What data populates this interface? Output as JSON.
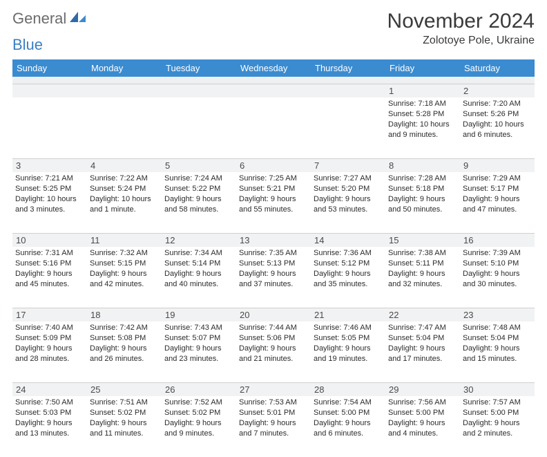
{
  "brand": {
    "part1": "General",
    "part2": "Blue"
  },
  "title": "November 2024",
  "location": "Zolotoye Pole, Ukraine",
  "colors": {
    "header_bar": "#3b8bd0",
    "daynum_bg": "#f1f2f3",
    "border": "#cfcfcf",
    "text": "#2b2b2b",
    "brand_gray": "#6b6b6b",
    "brand_blue": "#3b7fc4"
  },
  "days_of_week": [
    "Sunday",
    "Monday",
    "Tuesday",
    "Wednesday",
    "Thursday",
    "Friday",
    "Saturday"
  ],
  "weeks": [
    [
      null,
      null,
      null,
      null,
      null,
      {
        "n": "1",
        "sr": "Sunrise: 7:18 AM",
        "ss": "Sunset: 5:28 PM",
        "d1": "Daylight: 10 hours",
        "d2": "and 9 minutes."
      },
      {
        "n": "2",
        "sr": "Sunrise: 7:20 AM",
        "ss": "Sunset: 5:26 PM",
        "d1": "Daylight: 10 hours",
        "d2": "and 6 minutes."
      }
    ],
    [
      {
        "n": "3",
        "sr": "Sunrise: 7:21 AM",
        "ss": "Sunset: 5:25 PM",
        "d1": "Daylight: 10 hours",
        "d2": "and 3 minutes."
      },
      {
        "n": "4",
        "sr": "Sunrise: 7:22 AM",
        "ss": "Sunset: 5:24 PM",
        "d1": "Daylight: 10 hours",
        "d2": "and 1 minute."
      },
      {
        "n": "5",
        "sr": "Sunrise: 7:24 AM",
        "ss": "Sunset: 5:22 PM",
        "d1": "Daylight: 9 hours",
        "d2": "and 58 minutes."
      },
      {
        "n": "6",
        "sr": "Sunrise: 7:25 AM",
        "ss": "Sunset: 5:21 PM",
        "d1": "Daylight: 9 hours",
        "d2": "and 55 minutes."
      },
      {
        "n": "7",
        "sr": "Sunrise: 7:27 AM",
        "ss": "Sunset: 5:20 PM",
        "d1": "Daylight: 9 hours",
        "d2": "and 53 minutes."
      },
      {
        "n": "8",
        "sr": "Sunrise: 7:28 AM",
        "ss": "Sunset: 5:18 PM",
        "d1": "Daylight: 9 hours",
        "d2": "and 50 minutes."
      },
      {
        "n": "9",
        "sr": "Sunrise: 7:29 AM",
        "ss": "Sunset: 5:17 PM",
        "d1": "Daylight: 9 hours",
        "d2": "and 47 minutes."
      }
    ],
    [
      {
        "n": "10",
        "sr": "Sunrise: 7:31 AM",
        "ss": "Sunset: 5:16 PM",
        "d1": "Daylight: 9 hours",
        "d2": "and 45 minutes."
      },
      {
        "n": "11",
        "sr": "Sunrise: 7:32 AM",
        "ss": "Sunset: 5:15 PM",
        "d1": "Daylight: 9 hours",
        "d2": "and 42 minutes."
      },
      {
        "n": "12",
        "sr": "Sunrise: 7:34 AM",
        "ss": "Sunset: 5:14 PM",
        "d1": "Daylight: 9 hours",
        "d2": "and 40 minutes."
      },
      {
        "n": "13",
        "sr": "Sunrise: 7:35 AM",
        "ss": "Sunset: 5:13 PM",
        "d1": "Daylight: 9 hours",
        "d2": "and 37 minutes."
      },
      {
        "n": "14",
        "sr": "Sunrise: 7:36 AM",
        "ss": "Sunset: 5:12 PM",
        "d1": "Daylight: 9 hours",
        "d2": "and 35 minutes."
      },
      {
        "n": "15",
        "sr": "Sunrise: 7:38 AM",
        "ss": "Sunset: 5:11 PM",
        "d1": "Daylight: 9 hours",
        "d2": "and 32 minutes."
      },
      {
        "n": "16",
        "sr": "Sunrise: 7:39 AM",
        "ss": "Sunset: 5:10 PM",
        "d1": "Daylight: 9 hours",
        "d2": "and 30 minutes."
      }
    ],
    [
      {
        "n": "17",
        "sr": "Sunrise: 7:40 AM",
        "ss": "Sunset: 5:09 PM",
        "d1": "Daylight: 9 hours",
        "d2": "and 28 minutes."
      },
      {
        "n": "18",
        "sr": "Sunrise: 7:42 AM",
        "ss": "Sunset: 5:08 PM",
        "d1": "Daylight: 9 hours",
        "d2": "and 26 minutes."
      },
      {
        "n": "19",
        "sr": "Sunrise: 7:43 AM",
        "ss": "Sunset: 5:07 PM",
        "d1": "Daylight: 9 hours",
        "d2": "and 23 minutes."
      },
      {
        "n": "20",
        "sr": "Sunrise: 7:44 AM",
        "ss": "Sunset: 5:06 PM",
        "d1": "Daylight: 9 hours",
        "d2": "and 21 minutes."
      },
      {
        "n": "21",
        "sr": "Sunrise: 7:46 AM",
        "ss": "Sunset: 5:05 PM",
        "d1": "Daylight: 9 hours",
        "d2": "and 19 minutes."
      },
      {
        "n": "22",
        "sr": "Sunrise: 7:47 AM",
        "ss": "Sunset: 5:04 PM",
        "d1": "Daylight: 9 hours",
        "d2": "and 17 minutes."
      },
      {
        "n": "23",
        "sr": "Sunrise: 7:48 AM",
        "ss": "Sunset: 5:04 PM",
        "d1": "Daylight: 9 hours",
        "d2": "and 15 minutes."
      }
    ],
    [
      {
        "n": "24",
        "sr": "Sunrise: 7:50 AM",
        "ss": "Sunset: 5:03 PM",
        "d1": "Daylight: 9 hours",
        "d2": "and 13 minutes."
      },
      {
        "n": "25",
        "sr": "Sunrise: 7:51 AM",
        "ss": "Sunset: 5:02 PM",
        "d1": "Daylight: 9 hours",
        "d2": "and 11 minutes."
      },
      {
        "n": "26",
        "sr": "Sunrise: 7:52 AM",
        "ss": "Sunset: 5:02 PM",
        "d1": "Daylight: 9 hours",
        "d2": "and 9 minutes."
      },
      {
        "n": "27",
        "sr": "Sunrise: 7:53 AM",
        "ss": "Sunset: 5:01 PM",
        "d1": "Daylight: 9 hours",
        "d2": "and 7 minutes."
      },
      {
        "n": "28",
        "sr": "Sunrise: 7:54 AM",
        "ss": "Sunset: 5:00 PM",
        "d1": "Daylight: 9 hours",
        "d2": "and 6 minutes."
      },
      {
        "n": "29",
        "sr": "Sunrise: 7:56 AM",
        "ss": "Sunset: 5:00 PM",
        "d1": "Daylight: 9 hours",
        "d2": "and 4 minutes."
      },
      {
        "n": "30",
        "sr": "Sunrise: 7:57 AM",
        "ss": "Sunset: 5:00 PM",
        "d1": "Daylight: 9 hours",
        "d2": "and 2 minutes."
      }
    ]
  ]
}
